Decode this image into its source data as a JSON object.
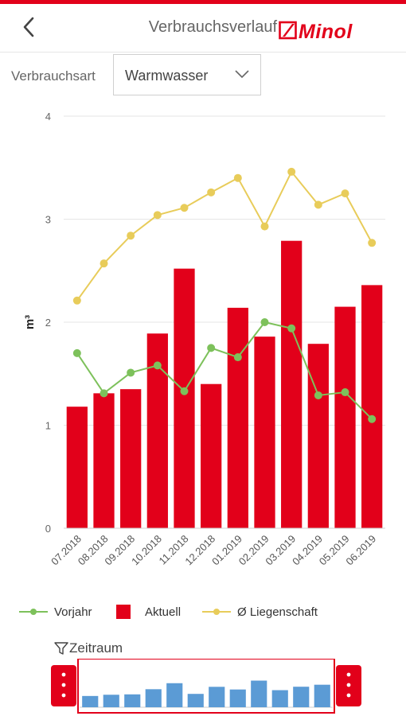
{
  "header": {
    "title": "Verbrauchsverlauf",
    "logo_text": "Minol",
    "back_icon": "chevron-left-icon"
  },
  "filter": {
    "label": "Verbrauchsart",
    "selected": "Warmwasser",
    "dropdown_icon": "chevron-down-icon"
  },
  "colors": {
    "brand": "#e2001a",
    "aktuell": "#e2001a",
    "vorjahr": "#7dc15b",
    "liegenschaft": "#e8cc5a",
    "navigator_bar": "#5b9bd5"
  },
  "chart_data": {
    "type": "bar",
    "categories": [
      "07.2018",
      "08.2018",
      "09.2018",
      "10.2018",
      "11.2018",
      "12.2018",
      "01.2019",
      "02.2019",
      "03.2019",
      "04.2019",
      "05.2019",
      "06.2019"
    ],
    "series": [
      {
        "name": "Aktuell",
        "type": "bar",
        "values": [
          1.18,
          1.31,
          1.35,
          1.89,
          2.52,
          1.4,
          2.14,
          1.86,
          2.79,
          1.79,
          2.15,
          2.36
        ]
      },
      {
        "name": "Vorjahr",
        "type": "line",
        "values": [
          1.7,
          1.31,
          1.51,
          1.58,
          1.33,
          1.75,
          1.66,
          2.0,
          1.94,
          1.29,
          1.32,
          1.06
        ]
      },
      {
        "name": "Ø Liegenschaft",
        "type": "line",
        "values": [
          2.21,
          2.57,
          2.84,
          3.04,
          3.11,
          3.26,
          3.4,
          2.93,
          3.46,
          3.14,
          3.25,
          2.77
        ]
      }
    ],
    "ylabel": "m³",
    "ylim": [
      0,
      4
    ],
    "yticks": [
      0,
      1,
      2,
      3,
      4
    ],
    "grid": true,
    "legend_position": "bottom"
  },
  "legend": {
    "vorjahr": "Vorjahr",
    "aktuell": "Aktuell",
    "liegenschaft": "Ø Liegenschaft"
  },
  "navigator": {
    "label": "Zeitraum",
    "filter_icon": "funnel-icon",
    "values": [
      1.18,
      1.31,
      1.35,
      1.89,
      2.52,
      1.4,
      2.14,
      1.86,
      2.79,
      1.79,
      2.15,
      2.36
    ]
  }
}
